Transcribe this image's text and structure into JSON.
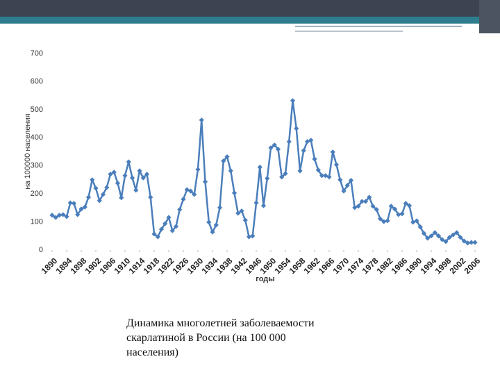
{
  "chart_data": {
    "type": "line",
    "y_label": "на 100000 населения",
    "x_label": "годы",
    "color": "#4a7ebb",
    "x": [
      1890,
      1891,
      1892,
      1893,
      1894,
      1895,
      1896,
      1897,
      1898,
      1899,
      1900,
      1901,
      1902,
      1903,
      1904,
      1905,
      1906,
      1907,
      1908,
      1909,
      1910,
      1911,
      1912,
      1913,
      1914,
      1915,
      1916,
      1917,
      1918,
      1919,
      1920,
      1921,
      1922,
      1923,
      1924,
      1925,
      1926,
      1927,
      1928,
      1929,
      1930,
      1931,
      1932,
      1933,
      1934,
      1935,
      1936,
      1937,
      1938,
      1939,
      1940,
      1941,
      1942,
      1943,
      1944,
      1945,
      1946,
      1947,
      1948,
      1949,
      1950,
      1951,
      1952,
      1953,
      1954,
      1955,
      1956,
      1957,
      1958,
      1959,
      1960,
      1961,
      1962,
      1963,
      1964,
      1965,
      1966,
      1967,
      1968,
      1969,
      1970,
      1971,
      1972,
      1973,
      1974,
      1975,
      1976,
      1977,
      1978,
      1979,
      1980,
      1981,
      1982,
      1983,
      1984,
      1985,
      1986,
      1987,
      1988,
      1989,
      1990,
      1991,
      1992,
      1993,
      1994,
      1995,
      1996,
      1997,
      1998,
      1999,
      2000,
      2001,
      2002,
      2003,
      2004,
      2005,
      2006
    ],
    "values": [
      124,
      116,
      124,
      126,
      119,
      168,
      166,
      126,
      146,
      153,
      188,
      250,
      220,
      176,
      198,
      223,
      270,
      277,
      238,
      186,
      265,
      314,
      257,
      213,
      282,
      257,
      270,
      188,
      57,
      47,
      74,
      94,
      116,
      69,
      84,
      144,
      181,
      215,
      210,
      198,
      287,
      463,
      243,
      99,
      64,
      89,
      151,
      317,
      332,
      282,
      203,
      131,
      139,
      106,
      47,
      50,
      168,
      295,
      158,
      255,
      364,
      374,
      359,
      260,
      272,
      386,
      532,
      433,
      282,
      354,
      386,
      391,
      324,
      285,
      265,
      265,
      260,
      349,
      304,
      250,
      210,
      230,
      248,
      151,
      156,
      173,
      173,
      188,
      156,
      144,
      111,
      101,
      104,
      156,
      146,
      126,
      129,
      166,
      158,
      99,
      104,
      82,
      59,
      42,
      50,
      62,
      50,
      37,
      30,
      45,
      54,
      62,
      45,
      32,
      25,
      27,
      27
    ],
    "xlim": [
      1890,
      2006
    ],
    "xticks": [
      1890,
      1894,
      1898,
      1902,
      1906,
      1910,
      1914,
      1918,
      1922,
      1926,
      1930,
      1934,
      1938,
      1942,
      1946,
      1950,
      1954,
      1958,
      1962,
      1966,
      1970,
      1974,
      1978,
      1982,
      1986,
      1990,
      1994,
      1998,
      2002,
      2006
    ],
    "ylim": [
      0,
      700
    ],
    "yticks": [
      0,
      100,
      200,
      300,
      400,
      500,
      600,
      700
    ],
    "grid": false
  },
  "caption_lines": [
    "Динамика многолетней заболеваемости",
    "скарлатиной в России (на 100 000",
    "населения)"
  ]
}
